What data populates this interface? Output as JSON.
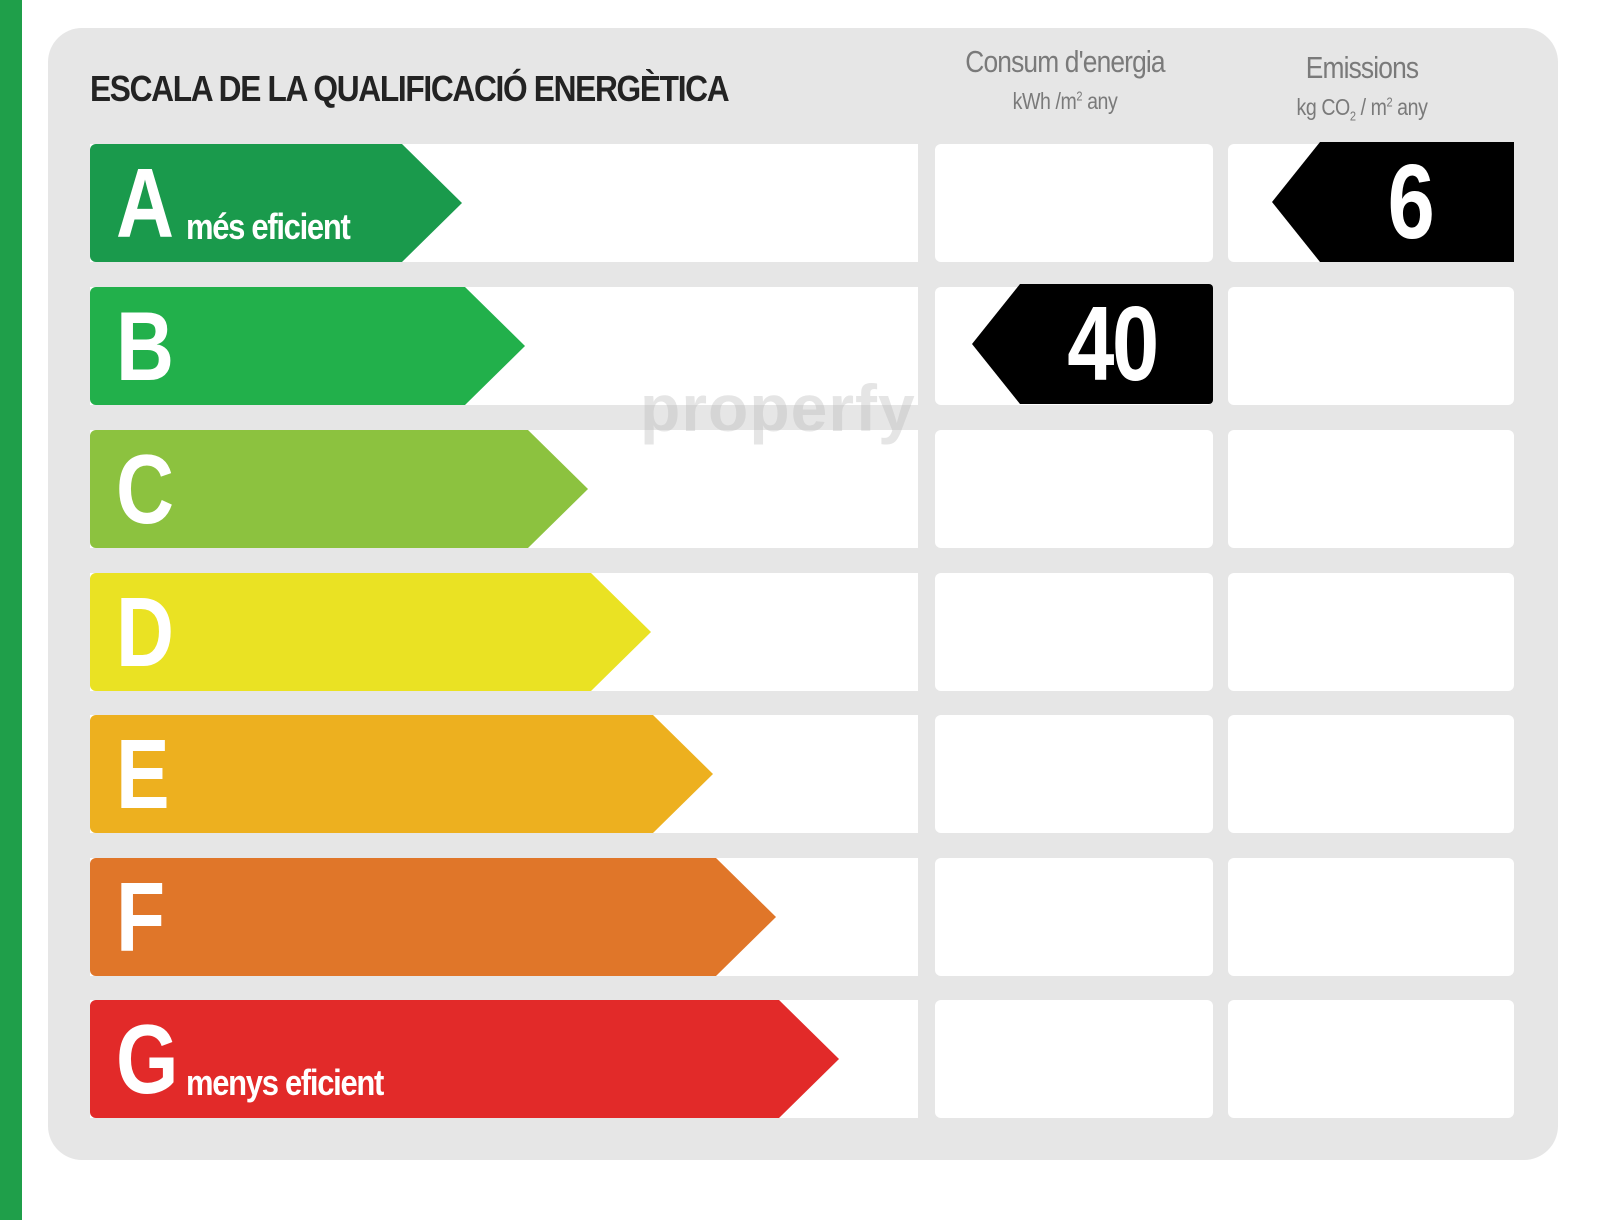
{
  "title": "ESCALA DE LA QUALIFICACIÓ ENERGÈTICA",
  "columns": {
    "consum_label": "Consum d'energia",
    "consum_unit_pre": "kWh /m",
    "consum_unit_sup": "2",
    "consum_unit_post": " any",
    "emissions_label": "Emissions",
    "emissions_unit_pre": "kg CO",
    "emissions_unit_sub": "2",
    "emissions_unit_mid": " / m",
    "emissions_unit_sup": "2",
    "emissions_unit_post": " any"
  },
  "ratings": [
    {
      "letter": "A",
      "sublabel": "més eficient",
      "color": "#1a9a4c"
    },
    {
      "letter": "B",
      "sublabel": "",
      "color": "#22b04b"
    },
    {
      "letter": "C",
      "sublabel": "",
      "color": "#8cc23f"
    },
    {
      "letter": "D",
      "sublabel": "",
      "color": "#eae223"
    },
    {
      "letter": "E",
      "sublabel": "",
      "color": "#edb01f"
    },
    {
      "letter": "F",
      "sublabel": "",
      "color": "#e07629"
    },
    {
      "letter": "G",
      "sublabel": "menys eficient",
      "color": "#e22a29"
    }
  ],
  "consumption": {
    "value": "40",
    "rating": "B"
  },
  "emissions": {
    "value": "6",
    "rating": "A"
  },
  "watermark": "properfy"
}
